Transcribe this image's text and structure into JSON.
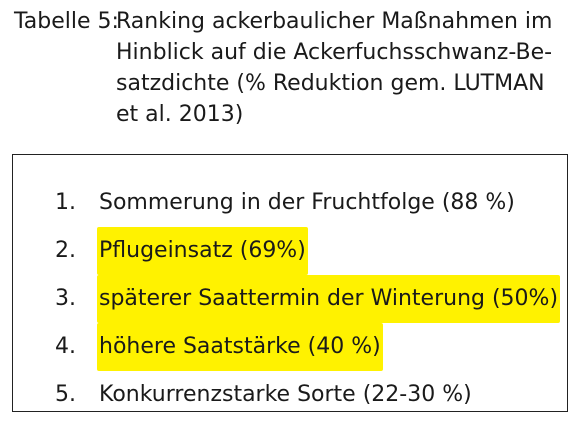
{
  "caption": {
    "label": "Tabelle 5:",
    "lines": [
      "Ranking ackerbaulicher Maßnahmen im",
      "Hinblick auf die Ackerfuchsschwanz-Be-",
      "satzdichte (% Reduktion gem. LUTMAN",
      "et al. 2013)"
    ]
  },
  "highlight_color": "#fff200",
  "items": [
    {
      "number": "1.",
      "text": "Sommerung in der Fruchtfolge (88 %)",
      "highlighted": false
    },
    {
      "number": "2.",
      "text": "Pflugeinsatz (69%)",
      "highlighted": true
    },
    {
      "number": "3.",
      "text": "späterer Saattermin der Winterung (50%)",
      "highlighted": true
    },
    {
      "number": "4.",
      "text": "höhere Saatstärke (40 %)",
      "highlighted": true
    },
    {
      "number": "5.",
      "text": "Konkurrenzstarke Sorte (22-30 %)",
      "highlighted": false
    }
  ]
}
